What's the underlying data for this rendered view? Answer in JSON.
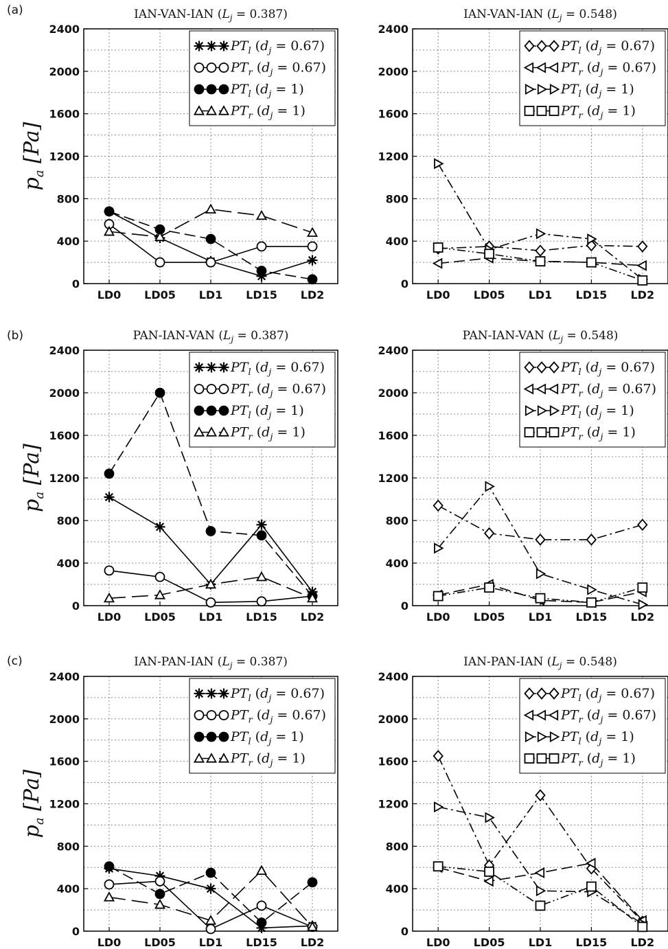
{
  "figure": {
    "row_labels": [
      "(a)",
      "(b)",
      "(c)"
    ],
    "y_axis_label": "p_a [Pa]",
    "y_ticks": [
      "0",
      "400",
      "800",
      "1200",
      "1600",
      "2000",
      "2400"
    ],
    "x_ticks": [
      "LD0",
      "LD05",
      "LD1",
      "LD15",
      "LD2"
    ]
  },
  "chart_data": [
    {
      "type": "line",
      "row": "(a)",
      "title": "IAN-VAN-IAN (L_j = 0.387)",
      "categories": [
        "LD0",
        "LD05",
        "LD1",
        "LD15",
        "LD2"
      ],
      "ylim": [
        0,
        2400
      ],
      "grid": true,
      "legend": "top-right",
      "series": [
        {
          "name": "PT_l (d_j = 0.67)",
          "marker": "star",
          "dash": "solid",
          "values": [
            680,
            430,
            210,
            70,
            220
          ]
        },
        {
          "name": "PT_r (d_j = 0.67)",
          "marker": "circle-open",
          "dash": "solid",
          "values": [
            560,
            200,
            200,
            350,
            350
          ]
        },
        {
          "name": "PT_l (d_j = 1)",
          "marker": "circle-filled",
          "dash": "dashed",
          "values": [
            680,
            510,
            420,
            120,
            40
          ]
        },
        {
          "name": "PT_r (d_j = 1)",
          "marker": "triangle-up",
          "dash": "longdash",
          "values": [
            490,
            440,
            700,
            640,
            480
          ]
        }
      ]
    },
    {
      "type": "line",
      "row": "(a)",
      "title": "IAN-VAN-IAN (L_j = 0.548)",
      "categories": [
        "LD0",
        "LD05",
        "LD1",
        "LD15",
        "LD2"
      ],
      "ylim": [
        0,
        2400
      ],
      "grid": true,
      "legend": "top-right",
      "series": [
        {
          "name": "PT_l (d_j = 0.67)",
          "marker": "diamond",
          "dash": "dashdot",
          "values": [
            330,
            350,
            310,
            360,
            350
          ]
        },
        {
          "name": "PT_r (d_j = 0.67)",
          "marker": "triangle-left",
          "dash": "dashed",
          "values": [
            190,
            240,
            210,
            200,
            170
          ]
        },
        {
          "name": "PT_l (d_j = 1)",
          "marker": "triangle-right",
          "dash": "dashdot",
          "values": [
            1130,
            320,
            470,
            420,
            40
          ]
        },
        {
          "name": "PT_r (d_j = 1)",
          "marker": "square",
          "dash": "dashdotdot",
          "values": [
            340,
            280,
            210,
            200,
            30
          ]
        }
      ]
    },
    {
      "type": "line",
      "row": "(b)",
      "title": "PAN-IAN-VAN (L_j = 0.387)",
      "categories": [
        "LD0",
        "LD05",
        "LD1",
        "LD15",
        "LD2"
      ],
      "ylim": [
        0,
        2400
      ],
      "grid": true,
      "legend": "top-right",
      "series": [
        {
          "name": "PT_l (d_j = 0.67)",
          "marker": "star",
          "dash": "solid",
          "values": [
            1020,
            740,
            200,
            760,
            130
          ]
        },
        {
          "name": "PT_r (d_j = 0.67)",
          "marker": "circle-open",
          "dash": "solid",
          "values": [
            330,
            270,
            30,
            40,
            90
          ]
        },
        {
          "name": "PT_l (d_j = 1)",
          "marker": "circle-filled",
          "dash": "dashed",
          "values": [
            1240,
            2000,
            700,
            660,
            90
          ]
        },
        {
          "name": "PT_r (d_j = 1)",
          "marker": "triangle-up",
          "dash": "longdash",
          "values": [
            70,
            100,
            200,
            270,
            70
          ]
        }
      ]
    },
    {
      "type": "line",
      "row": "(b)",
      "title": "PAN-IAN-VAN (L_j = 0.548)",
      "categories": [
        "LD0",
        "LD05",
        "LD1",
        "LD15",
        "LD2"
      ],
      "ylim": [
        0,
        2400
      ],
      "grid": true,
      "legend": "top-right",
      "series": [
        {
          "name": "PT_l (d_j = 0.67)",
          "marker": "diamond",
          "dash": "dashdot",
          "values": [
            940,
            680,
            620,
            620,
            760
          ]
        },
        {
          "name": "PT_r (d_j = 0.67)",
          "marker": "triangle-left",
          "dash": "dashed",
          "values": [
            100,
            200,
            50,
            30,
            130
          ]
        },
        {
          "name": "PT_l (d_j = 1)",
          "marker": "triangle-right",
          "dash": "dashdot",
          "values": [
            540,
            1120,
            300,
            150,
            10
          ]
        },
        {
          "name": "PT_r (d_j = 1)",
          "marker": "square",
          "dash": "dashdotdot",
          "values": [
            90,
            170,
            70,
            30,
            170
          ]
        }
      ]
    },
    {
      "type": "line",
      "row": "(c)",
      "title": "IAN-PAN-IAN (L_j = 0.387)",
      "categories": [
        "LD0",
        "LD05",
        "LD1",
        "LD15",
        "LD2"
      ],
      "ylim": [
        0,
        2400
      ],
      "grid": true,
      "legend": "top-right",
      "series": [
        {
          "name": "PT_l (d_j = 0.67)",
          "marker": "star",
          "dash": "solid",
          "values": [
            590,
            520,
            400,
            30,
            50
          ]
        },
        {
          "name": "PT_r (d_j = 0.67)",
          "marker": "circle-open",
          "dash": "solid",
          "values": [
            440,
            470,
            20,
            240,
            40
          ]
        },
        {
          "name": "PT_l (d_j = 1)",
          "marker": "circle-filled",
          "dash": "dashed",
          "values": [
            610,
            350,
            550,
            80,
            460
          ]
        },
        {
          "name": "PT_r (d_j = 1)",
          "marker": "triangle-up",
          "dash": "longdash",
          "values": [
            320,
            250,
            100,
            570,
            40
          ]
        }
      ]
    },
    {
      "type": "line",
      "row": "(c)",
      "title": "IAN-PAN-IAN (L_j = 0.548)",
      "categories": [
        "LD0",
        "LD05",
        "LD1",
        "LD15",
        "LD2"
      ],
      "ylim": [
        0,
        2400
      ],
      "grid": true,
      "legend": "top-right",
      "series": [
        {
          "name": "PT_l (d_j = 0.67)",
          "marker": "diamond",
          "dash": "dashdot",
          "values": [
            1650,
            620,
            1280,
            590,
            90
          ]
        },
        {
          "name": "PT_r (d_j = 0.67)",
          "marker": "triangle-left",
          "dash": "dashed",
          "values": [
            600,
            470,
            550,
            640,
            100
          ]
        },
        {
          "name": "PT_l (d_j = 1)",
          "marker": "triangle-right",
          "dash": "dashdot",
          "values": [
            1170,
            1070,
            380,
            370,
            70
          ]
        },
        {
          "name": "PT_r (d_j = 1)",
          "marker": "square",
          "dash": "dashdotdot",
          "values": [
            610,
            560,
            240,
            420,
            40
          ]
        }
      ]
    }
  ]
}
